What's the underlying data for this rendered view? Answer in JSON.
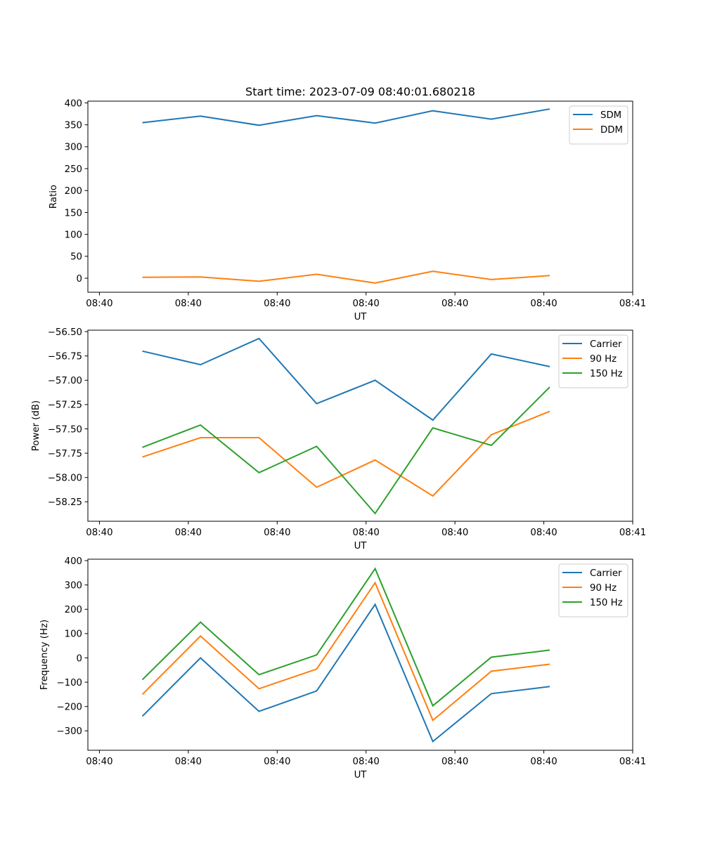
{
  "figure": {
    "title": "Start time: 2023-07-09 08:40:01.680218"
  },
  "chart_data": [
    {
      "type": "line",
      "title": "Start time: 2023-07-09 08:40:01.680218",
      "xlabel": "UT",
      "ylabel": "Ratio",
      "x_ticks": [
        "08:40",
        "08:40",
        "08:40",
        "08:40",
        "08:40",
        "08:40",
        "08:41"
      ],
      "x_tick_positions": [
        0,
        1,
        2,
        3,
        4,
        5,
        6
      ],
      "x": [
        0.483,
        1.137,
        1.795,
        2.444,
        3.102,
        3.751,
        4.409,
        5.067
      ],
      "xlim": [
        -0.13,
        6.0
      ],
      "ylim": [
        -32,
        404
      ],
      "y_ticks": [
        0,
        50,
        100,
        150,
        200,
        250,
        300,
        350,
        400
      ],
      "y_tick_labels": [
        "0",
        "50",
        "100",
        "150",
        "200",
        "250",
        "300",
        "350",
        "400"
      ],
      "legend_position": "top-right",
      "grid": false,
      "series": [
        {
          "name": "SDM",
          "color": "#1f77b4",
          "values": [
            355,
            370,
            349,
            371,
            354,
            382,
            363,
            386
          ]
        },
        {
          "name": "DDM",
          "color": "#ff7f0e",
          "values": [
            2,
            3,
            -7,
            9,
            -11,
            16,
            -3,
            6
          ]
        }
      ]
    },
    {
      "type": "line",
      "title": "",
      "xlabel": "UT",
      "ylabel": "Power (dB)",
      "x_ticks": [
        "08:40",
        "08:40",
        "08:40",
        "08:40",
        "08:40",
        "08:40",
        "08:41"
      ],
      "x_tick_positions": [
        0,
        1,
        2,
        3,
        4,
        5,
        6
      ],
      "x": [
        0.483,
        1.137,
        1.795,
        2.444,
        3.102,
        3.751,
        4.409,
        5.067
      ],
      "xlim": [
        -0.13,
        6.0
      ],
      "ylim": [
        -58.45,
        -56.485
      ],
      "y_ticks": [
        -56.5,
        -56.75,
        -57.0,
        -57.25,
        -57.5,
        -57.75,
        -58.0,
        -58.25
      ],
      "y_tick_labels": [
        "−56.50",
        "−56.75",
        "−57.00",
        "−57.25",
        "−57.50",
        "−57.75",
        "−58.00",
        "−58.25"
      ],
      "legend_position": "top-right",
      "grid": false,
      "series": [
        {
          "name": "Carrier",
          "color": "#1f77b4",
          "values": [
            -56.7,
            -56.84,
            -56.57,
            -57.24,
            -57.0,
            -57.41,
            -56.73,
            -56.86
          ]
        },
        {
          "name": "90 Hz",
          "color": "#ff7f0e",
          "values": [
            -57.79,
            -57.59,
            -57.59,
            -58.1,
            -57.82,
            -58.19,
            -57.56,
            -57.32
          ]
        },
        {
          "name": "150 Hz",
          "color": "#2ca02c",
          "values": [
            -57.69,
            -57.46,
            -57.95,
            -57.68,
            -58.37,
            -57.49,
            -57.67,
            -57.07
          ]
        }
      ]
    },
    {
      "type": "line",
      "title": "",
      "xlabel": "UT",
      "ylabel": "Frequency (Hz)",
      "x_ticks": [
        "08:40",
        "08:40",
        "08:40",
        "08:40",
        "08:40",
        "08:40",
        "08:41"
      ],
      "x_tick_positions": [
        0,
        1,
        2,
        3,
        4,
        5,
        6
      ],
      "x": [
        0.483,
        1.137,
        1.795,
        2.444,
        3.102,
        3.751,
        4.409,
        5.067
      ],
      "xlim": [
        -0.13,
        6.0
      ],
      "ylim": [
        -380,
        406
      ],
      "y_ticks": [
        -300,
        -200,
        -100,
        0,
        100,
        200,
        300,
        400
      ],
      "y_tick_labels": [
        "−300",
        "−200",
        "−100",
        "0",
        "100",
        "200",
        "300",
        "400"
      ],
      "legend_position": "top-right",
      "grid": false,
      "series": [
        {
          "name": "Carrier",
          "color": "#1f77b4",
          "values": [
            -240,
            0,
            -220,
            -136,
            220,
            -344,
            -147,
            -118
          ]
        },
        {
          "name": "90 Hz",
          "color": "#ff7f0e",
          "values": [
            -150,
            90,
            -127,
            -46,
            309,
            -257,
            -55,
            -26
          ]
        },
        {
          "name": "150 Hz",
          "color": "#2ca02c",
          "values": [
            -90,
            147,
            -69,
            12,
            367,
            -197,
            3,
            32
          ]
        }
      ]
    }
  ]
}
